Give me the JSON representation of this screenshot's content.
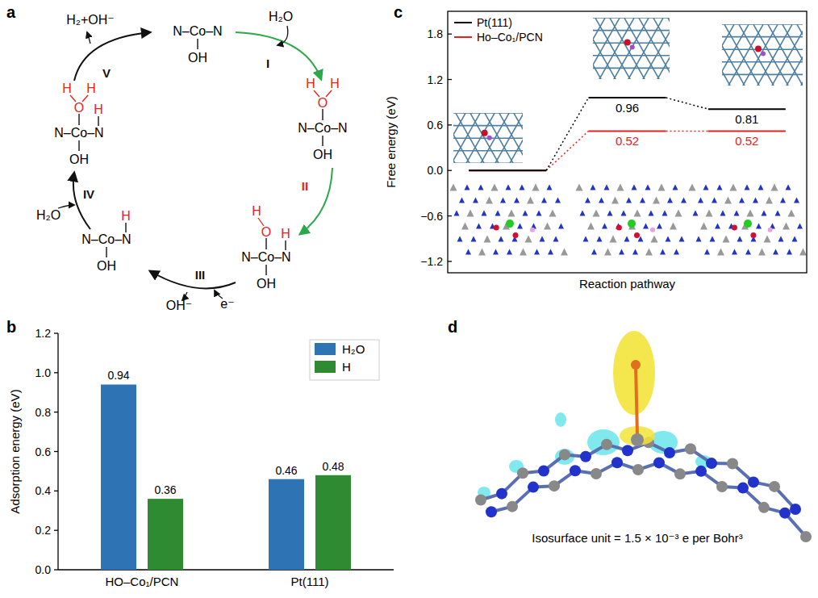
{
  "chart_data": [
    {
      "type": "bar",
      "title": "b",
      "y_label": "Adsorption energy (eV)",
      "categories": [
        "HO–Co₁/PCN",
        "Pt(111)"
      ],
      "series": [
        {
          "name": "H₂O",
          "color": "#2e74b5",
          "values": [
            0.94,
            0.46
          ]
        },
        {
          "name": "H",
          "color": "#2e8b32",
          "values": [
            0.36,
            0.48
          ]
        }
      ],
      "ylim": [
        0,
        1.2
      ],
      "yticks": [
        {
          "value": 0,
          "label": "0.0"
        },
        0.2,
        0.4,
        0.6,
        0.8,
        {
          "value": 1,
          "label": "1.0"
        },
        1.2
      ],
      "grid": false,
      "legend": "upper right",
      "data_labels": true
    },
    {
      "type": "line",
      "title": "c",
      "y_label": "Free energy (eV)",
      "x_label": "Reaction pathway",
      "categories": [
        null,
        null,
        null
      ],
      "series": [
        {
          "name": "Pt(111)",
          "color": "#000000",
          "values": [
            0,
            0.96,
            0.81
          ],
          "value_labels": [
            null,
            "0.96",
            "0.81"
          ],
          "marker": "level",
          "line_style": "dotted"
        },
        {
          "name": "Ho–Co₁/PCN",
          "color": "#e8211a",
          "values": [
            0,
            0.52,
            0.52
          ],
          "value_labels": [
            null,
            "0.52",
            "0.52"
          ],
          "marker": "level",
          "line_style": "dotted"
        }
      ],
      "ylim": [
        -1.35,
        2.1
      ],
      "yticks": [
        {
          "value": -1.2,
          "label": "−1.2"
        },
        {
          "value": -0.6,
          "label": "−0.6"
        },
        {
          "value": 0,
          "label": "0.0"
        },
        0.6,
        1.2,
        1.8
      ],
      "grid": false,
      "legend": "upper left",
      "data_labels": true,
      "tick_labels": "y"
    }
  ],
  "reaction_cycle": {
    "label": "a",
    "intermediates": [
      {
        "core": "N–Co–N",
        "axial": "OH"
      },
      {
        "core": "N–Co–N",
        "axial": "OH",
        "water": [
          "H",
          "O",
          "H"
        ]
      },
      {
        "core": "N–Co–N",
        "axial": "OH",
        "hydroxyl": [
          "H",
          "O"
        ],
        "nh": "H"
      },
      {
        "core": "N–Co–N",
        "axial": "OH",
        "nh": "H"
      },
      {
        "core": "N–Co–N",
        "axial": "OH",
        "water": [
          "H",
          "O",
          "H"
        ],
        "nh": "H"
      }
    ],
    "steps": [
      {
        "label": "I",
        "species": [
          "H₂O"
        ]
      },
      {
        "label": "II",
        "species": []
      },
      {
        "label": "III",
        "species": [
          "OH⁻",
          "e⁻"
        ]
      },
      {
        "label": "IV",
        "species": [
          "H₂O"
        ]
      },
      {
        "label": "V",
        "species": [
          "H₂+OH⁻"
        ]
      }
    ]
  },
  "charge_density": {
    "label": "d",
    "caption": "Isosurface unit = 1.5 × 10⁻³ e per Bohr³"
  }
}
